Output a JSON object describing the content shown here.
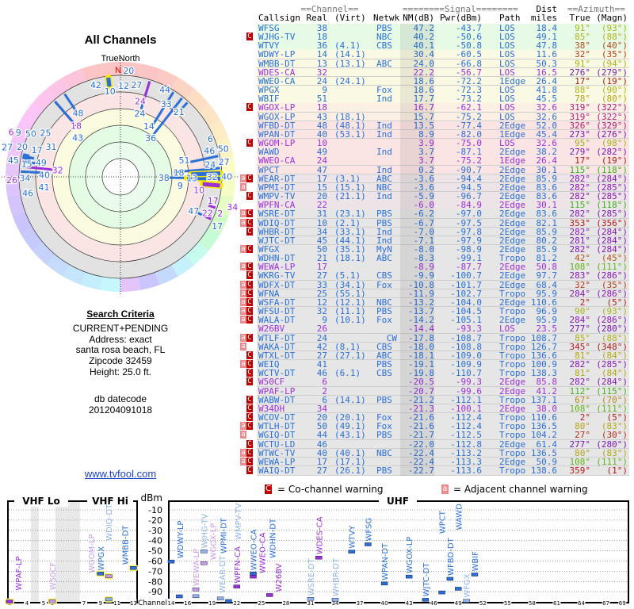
{
  "left_panel": {
    "title": "All Channels",
    "compass_label": "TrueNorth",
    "north_label": "N",
    "criteria_heading": "Search Criteria",
    "criteria_lines": [
      "CURRENT+PENDING",
      "Address: exact",
      "santa rosa beach, FL",
      "Zipcode 32459",
      "Height: 25.0 ft."
    ],
    "datecode_label": "db datecode",
    "datecode": "201204091018",
    "link": "www.tvfool.com"
  },
  "table_header": {
    "channel_group": "==Channel==",
    "signal_group": "========Signal========",
    "dist_top": "Dist",
    "azimuth_group": "==Azimuth==",
    "callsign": "Callsign",
    "real": "Real",
    "virt": "(Virt)",
    "netwk": "Netwk",
    "nm": "NM(dB)",
    "pwr": "Pwr(dBm)",
    "path": "Path",
    "dist": "miles",
    "true": "True",
    "magn": "(Magn)"
  },
  "colors": {
    "digital": "#2a6fd6",
    "analog": "#9b30d9",
    "co_channel": "#c00000",
    "adjacent": "#f08a8a"
  },
  "rows": [
    {
      "call": "WFSG",
      "real": "38",
      "virt": "",
      "net": "PBS",
      "nm": "47.2",
      "pwr": "-43.7",
      "path": "LOS",
      "dist": "18.4",
      "true": "91°",
      "magn": "(93°)",
      "flags": "",
      "analog": false
    },
    {
      "call": "WJHG-TV",
      "real": "18",
      "virt": "",
      "net": "NBC",
      "nm": "40.2",
      "pwr": "-50.6",
      "path": "LOS",
      "dist": "49.1",
      "true": "85°",
      "magn": "(88°)",
      "flags": "c",
      "analog": false
    },
    {
      "call": "WTVY",
      "real": "36",
      "virt": "(4.1)",
      "net": "CBS",
      "nm": "40.1",
      "pwr": "-50.8",
      "path": "LOS",
      "dist": "47.8",
      "true": "38°",
      "magn": "(40°)",
      "flags": "",
      "analog": false
    },
    {
      "call": "WDWY-LP",
      "real": "14",
      "virt": "(14.1)",
      "net": "",
      "nm": "30.4",
      "pwr": "-60.5",
      "path": "LOS",
      "dist": "11.6",
      "true": "32°",
      "magn": "(35°)",
      "flags": "",
      "analog": false
    },
    {
      "call": "WMBB-DT",
      "real": "13",
      "virt": "(13.1)",
      "net": "ABC",
      "nm": "24.0",
      "pwr": "-66.8",
      "path": "LOS",
      "dist": "50.3",
      "true": "91°",
      "magn": "(94°)",
      "flags": "",
      "analog": false
    },
    {
      "call": "WDES-CA",
      "real": "32",
      "virt": "",
      "net": "",
      "nm": "22.2",
      "pwr": "-56.7",
      "path": "LOS",
      "dist": "16.5",
      "true": "276°",
      "magn": "(279°)",
      "flags": "",
      "analog": true
    },
    {
      "call": "WWEO-CA",
      "real": "24",
      "virt": "(24.1)",
      "net": "",
      "nm": "18.6",
      "pwr": "-72.2",
      "path": "1Edge",
      "dist": "26.4",
      "true": "17°",
      "magn": "(19°)",
      "flags": "",
      "analog": false
    },
    {
      "call": "WPGX",
      "real": "9",
      "virt": "",
      "net": "Fox",
      "nm": "18.6",
      "pwr": "-72.3",
      "path": "LOS",
      "dist": "41.8",
      "true": "88°",
      "magn": "(90°)",
      "flags": "",
      "analog": false
    },
    {
      "call": "WBIF",
      "real": "51",
      "virt": "",
      "net": "Ind",
      "nm": "17.7",
      "pwr": "-73.2",
      "path": "LOS",
      "dist": "45.5",
      "true": "78°",
      "magn": "(80°)",
      "flags": "",
      "analog": false
    },
    {
      "call": "WGOX-LP",
      "real": "18",
      "virt": "",
      "net": "",
      "nm": "16.7",
      "pwr": "-62.1",
      "path": "LOS",
      "dist": "32.6",
      "true": "319°",
      "magn": "(322°)",
      "flags": "c",
      "analog": true
    },
    {
      "call": "WGOX-LP",
      "real": "43",
      "virt": "(18.1)",
      "net": "",
      "nm": "15.7",
      "pwr": "-75.2",
      "path": "LOS",
      "dist": "32.6",
      "true": "319°",
      "magn": "(322°)",
      "flags": "",
      "analog": false
    },
    {
      "call": "WFBD-DT",
      "real": "48",
      "virt": "(48.1)",
      "net": "Ind",
      "nm": "13.5",
      "pwr": "-77.4",
      "path": "2Edge",
      "dist": "52.0",
      "true": "326°",
      "magn": "(329°)",
      "flags": "",
      "analog": false
    },
    {
      "call": "WPAN-DT",
      "real": "40",
      "virt": "(53.1)",
      "net": "Ind",
      "nm": "8.9",
      "pwr": "-82.0",
      "path": "1Edge",
      "dist": "45.4",
      "true": "273°",
      "magn": "(276°)",
      "flags": "",
      "analog": false
    },
    {
      "call": "WGOM-LP",
      "real": "10",
      "virt": "",
      "net": "",
      "nm": "3.9",
      "pwr": "-75.0",
      "path": "LOS",
      "dist": "32.6",
      "true": "95°",
      "magn": "(98°)",
      "flags": "c",
      "analog": true
    },
    {
      "call": "WAWD",
      "real": "49",
      "virt": "",
      "net": "Ind",
      "nm": "3.7",
      "pwr": "-87.1",
      "path": "2Edge",
      "dist": "38.2",
      "true": "279°",
      "magn": "(282°)",
      "flags": "",
      "analog": false
    },
    {
      "call": "WWEO-CA",
      "real": "24",
      "virt": "",
      "net": "",
      "nm": "3.7",
      "pwr": "-75.2",
      "path": "1Edge",
      "dist": "26.4",
      "true": "17°",
      "magn": "(19°)",
      "flags": "",
      "analog": true
    },
    {
      "call": "WPCT",
      "real": "47",
      "virt": "",
      "net": "Ind",
      "nm": "0.2",
      "pwr": "-90.7",
      "path": "2Edge",
      "dist": "30.1",
      "true": "115°",
      "magn": "(118°)",
      "flags": "",
      "analog": false
    },
    {
      "call": "WEAR-DT",
      "real": "17",
      "virt": "(3.1)",
      "net": "ABC",
      "nm": "-3.6",
      "pwr": "-94.4",
      "path": "2Edge",
      "dist": "85.9",
      "true": "282°",
      "magn": "(284°)",
      "flags": "ac",
      "analog": false
    },
    {
      "call": "WPMI-DT",
      "real": "15",
      "virt": "(15.1)",
      "net": "NBC",
      "nm": "-3.6",
      "pwr": "-94.5",
      "path": "2Edge",
      "dist": "83.6",
      "true": "282°",
      "magn": "(285°)",
      "flags": "a",
      "analog": false
    },
    {
      "call": "WMPV-TV",
      "real": "20",
      "virt": "(21.1)",
      "net": "Ind",
      "nm": "-5.9",
      "pwr": "-96.7",
      "path": "2Edge",
      "dist": "83.6",
      "true": "282°",
      "magn": "(285°)",
      "flags": "c",
      "analog": false
    },
    {
      "call": "WPFN-CA",
      "real": "22",
      "virt": "",
      "net": "",
      "nm": "-6.0",
      "pwr": "-84.9",
      "path": "2Edge",
      "dist": "30.1",
      "true": "115°",
      "magn": "(118°)",
      "flags": "",
      "analog": true
    },
    {
      "call": "WSRE-DT",
      "real": "31",
      "virt": "(23.1)",
      "net": "PBS",
      "nm": "-6.2",
      "pwr": "-97.0",
      "path": "2Edge",
      "dist": "83.6",
      "true": "282°",
      "magn": "(285°)",
      "flags": "ac",
      "analog": false
    },
    {
      "call": "WDIQ-DT",
      "real": "10",
      "virt": "(2.1)",
      "net": "PBS",
      "nm": "-6.7",
      "pwr": "-97.5",
      "path": "2Edge",
      "dist": "82.1",
      "true": "353°",
      "magn": "(356°)",
      "flags": "ac",
      "analog": false
    },
    {
      "call": "WHBR-DT",
      "real": "34",
      "virt": "(33.1)",
      "net": "Ind",
      "nm": "-7.0",
      "pwr": "-97.8",
      "path": "2Edge",
      "dist": "85.9",
      "true": "282°",
      "magn": "(284°)",
      "flags": "c",
      "analog": false
    },
    {
      "call": "WJTC-DT",
      "real": "45",
      "virt": "(44.1)",
      "net": "Ind",
      "nm": "-7.1",
      "pwr": "-97.9",
      "path": "2Edge",
      "dist": "80.2",
      "true": "281°",
      "magn": "(284°)",
      "flags": "",
      "analog": false
    },
    {
      "call": "WFGX",
      "real": "50",
      "virt": "(35.1)",
      "net": "MyN",
      "nm": "-8.0",
      "pwr": "-98.9",
      "path": "2Edge",
      "dist": "85.9",
      "true": "282°",
      "magn": "(284°)",
      "flags": "ac",
      "analog": false
    },
    {
      "call": "WDHN-DT",
      "real": "21",
      "virt": "(18.1)",
      "net": "ABC",
      "nm": "-8.3",
      "pwr": "-99.1",
      "path": "Tropo",
      "dist": "81.2",
      "true": "42°",
      "magn": "(45°)",
      "flags": "",
      "analog": false
    },
    {
      "call": "WEWA-LP",
      "real": "17",
      "virt": "",
      "net": "",
      "nm": "-8.9",
      "pwr": "-87.7",
      "path": "2Edge",
      "dist": "50.8",
      "true": "108°",
      "magn": "(111°)",
      "flags": "ac",
      "analog": true
    },
    {
      "call": "WKRG-TV",
      "real": "27",
      "virt": "(5.1)",
      "net": "CBS",
      "nm": "-9.9",
      "pwr": "-100.7",
      "path": "2Edge",
      "dist": "97.7",
      "true": "283°",
      "magn": "(286°)",
      "flags": "c",
      "analog": false
    },
    {
      "call": "WDFX-DT",
      "real": "33",
      "virt": "(34.1)",
      "net": "Fox",
      "nm": "-10.8",
      "pwr": "-101.7",
      "path": "2Edge",
      "dist": "68.4",
      "true": "32°",
      "magn": "(35°)",
      "flags": "ac",
      "analog": false
    },
    {
      "call": "WFNA",
      "real": "25",
      "virt": "(55.1)",
      "net": "",
      "nm": "-11.9",
      "pwr": "-102.7",
      "path": "Tropo",
      "dist": "95.9",
      "true": "284°",
      "magn": "(286°)",
      "flags": "ac",
      "analog": false
    },
    {
      "call": "WSFA-DT",
      "real": "12",
      "virt": "(12.1)",
      "net": "NBC",
      "nm": "-13.2",
      "pwr": "-104.0",
      "path": "2Edge",
      "dist": "110.6",
      "true": "2°",
      "magn": "(5°)",
      "flags": "ac",
      "analog": false
    },
    {
      "call": "WFSU-DT",
      "real": "32",
      "virt": "(11.1)",
      "net": "PBS",
      "nm": "-13.7",
      "pwr": "-104.5",
      "path": "Tropo",
      "dist": "96.9",
      "true": "90°",
      "magn": "(93°)",
      "flags": "ac",
      "analog": false
    },
    {
      "call": "WALA-DT",
      "real": "9",
      "virt": "(10.1)",
      "net": "Fox",
      "nm": "-14.2",
      "pwr": "-105.1",
      "path": "2Edge",
      "dist": "95.9",
      "true": "284°",
      "magn": "(286°)",
      "flags": "ac",
      "analog": false
    },
    {
      "call": "W26BV",
      "real": "26",
      "virt": "",
      "net": "",
      "nm": "-14.4",
      "pwr": "-93.3",
      "path": "LOS",
      "dist": "23.5",
      "true": "277°",
      "magn": "(280°)",
      "flags": "",
      "analog": true
    },
    {
      "call": "WTLF-DT",
      "real": "24",
      "virt": "",
      "net": "CW",
      "nm": "-17.8",
      "pwr": "-108.7",
      "path": "Tropo",
      "dist": "108.7",
      "true": "85°",
      "magn": "(88°)",
      "flags": "ac",
      "analog": false
    },
    {
      "call": "WAKA-DT",
      "real": "42",
      "virt": "(8.1)",
      "net": "CBS",
      "nm": "-18.0",
      "pwr": "-108.8",
      "path": "Tropo",
      "dist": "126.7",
      "true": "345°",
      "magn": "(348°)",
      "flags": "a",
      "analog": false
    },
    {
      "call": "WTXL-DT",
      "real": "27",
      "virt": "(27.1)",
      "net": "ABC",
      "nm": "-18.1",
      "pwr": "-109.0",
      "path": "Tropo",
      "dist": "136.6",
      "true": "81°",
      "magn": "(84°)",
      "flags": "c",
      "analog": false
    },
    {
      "call": "WEIQ",
      "real": "41",
      "virt": "",
      "net": "PBS",
      "nm": "-19.1",
      "pwr": "-109.9",
      "path": "Tropo",
      "dist": "100.9",
      "true": "282°",
      "magn": "(285°)",
      "flags": "ac",
      "analog": false
    },
    {
      "call": "WCTV-DT",
      "real": "46",
      "virt": "(6.1)",
      "net": "CBS",
      "nm": "-19.8",
      "pwr": "-110.7",
      "path": "Tropo",
      "dist": "138.3",
      "true": "81°",
      "magn": "(84°)",
      "flags": "c",
      "analog": false
    },
    {
      "call": "W50CF",
      "real": "6",
      "virt": "",
      "net": "",
      "nm": "-20.5",
      "pwr": "-99.3",
      "path": "2Edge",
      "dist": "85.8",
      "true": "282°",
      "magn": "(284°)",
      "flags": "c",
      "analog": true
    },
    {
      "call": "WPAF-LP",
      "real": "2",
      "virt": "",
      "net": "",
      "nm": "-20.7",
      "pwr": "-99.6",
      "path": "2Edge",
      "dist": "41.2",
      "true": "112°",
      "magn": "(115°)",
      "flags": "",
      "analog": true
    },
    {
      "call": "WABW-DT",
      "real": "6",
      "virt": "(14.1)",
      "net": "PBS",
      "nm": "-21.2",
      "pwr": "-112.1",
      "path": "Tropo",
      "dist": "137.1",
      "true": "67°",
      "magn": "(70°)",
      "flags": "c",
      "analog": false
    },
    {
      "call": "W34DH",
      "real": "34",
      "virt": "",
      "net": "",
      "nm": "-21.3",
      "pwr": "-100.1",
      "path": "2Edge",
      "dist": "38.0",
      "true": "108°",
      "magn": "(111°)",
      "flags": "c",
      "analog": true
    },
    {
      "call": "WCOV-DT",
      "real": "20",
      "virt": "(20.1)",
      "net": "Fox",
      "nm": "-21.6",
      "pwr": "-112.4",
      "path": "Tropo",
      "dist": "110.6",
      "true": "2°",
      "magn": "(5°)",
      "flags": "c",
      "analog": false
    },
    {
      "call": "WTLH-DT",
      "real": "50",
      "virt": "(49.1)",
      "net": "Fox",
      "nm": "-21.6",
      "pwr": "-112.4",
      "path": "Tropo",
      "dist": "136.5",
      "true": "80°",
      "magn": "(83°)",
      "flags": "ac",
      "analog": false
    },
    {
      "call": "WGIQ-DT",
      "real": "44",
      "virt": "(43.1)",
      "net": "PBS",
      "nm": "-21.7",
      "pwr": "-112.5",
      "path": "Tropo",
      "dist": "104.2",
      "true": "27°",
      "magn": "(30°)",
      "flags": "a",
      "analog": false
    },
    {
      "call": "WCTU-LD",
      "real": "46",
      "virt": "",
      "net": "",
      "nm": "-22.0",
      "pwr": "-112.8",
      "path": "2Edge",
      "dist": "61.4",
      "true": "277°",
      "magn": "(280°)",
      "flags": "c",
      "analog": false
    },
    {
      "call": "WTWC-TV",
      "real": "40",
      "virt": "(40.1)",
      "net": "NBC",
      "nm": "-22.4",
      "pwr": "-113.2",
      "path": "Tropo",
      "dist": "136.5",
      "true": "80°",
      "magn": "(83°)",
      "flags": "ac",
      "analog": false
    },
    {
      "call": "WEWA-LP",
      "real": "17",
      "virt": "(17.1)",
      "net": "",
      "nm": "-22.4",
      "pwr": "-113.3",
      "path": "2Edge",
      "dist": "50.9",
      "true": "108°",
      "magn": "(111°)",
      "flags": "ac",
      "analog": false
    },
    {
      "call": "WAIQ-DT",
      "real": "27",
      "virt": "(26.1)",
      "net": "PBS",
      "nm": "-22.7",
      "pwr": "-113.6",
      "path": "Tropo",
      "dist": "138.6",
      "true": "359°",
      "magn": "(1°)",
      "flags": "c",
      "analog": false
    }
  ],
  "legend": {
    "co_channel_letter": "C",
    "co_channel": "= Co-channel warning",
    "adjacent_letter": "a",
    "adjacent": "= Adjacent channel warning"
  },
  "spectrum": {
    "vhf_lo": "VHF Lo",
    "vhf_hi": "VHF Hi",
    "uhf": "UHF",
    "unit": "dBm",
    "axis_label": "Channel",
    "db_ticks": [
      "-10",
      "-20",
      "-30",
      "-40",
      "-50",
      "-60",
      "-70",
      "-80",
      "-90"
    ],
    "vhf_channel_ticks": [
      "2",
      "4",
      "5",
      "6",
      "7",
      "9",
      "11",
      "13"
    ],
    "uhf_channel_ticks": [
      "14",
      "16",
      "19",
      "22",
      "25",
      "28",
      "31",
      "34",
      "37",
      "40",
      "43",
      "46",
      "49",
      "52",
      "55",
      "58",
      "61",
      "64",
      "67",
      "69"
    ]
  }
}
